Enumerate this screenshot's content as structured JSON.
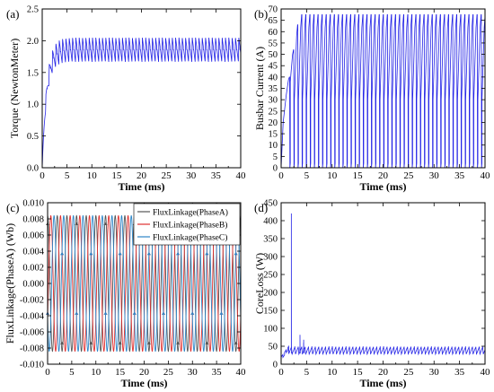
{
  "chart_data": [
    {
      "id": "a",
      "panel_label": "(a)",
      "type": "line",
      "xlabel": "Time (ms)",
      "ylabel": "Torque (NewtonMeter)",
      "xlim": [
        0,
        40
      ],
      "ylim": [
        0,
        2.5
      ],
      "xticks": [
        0,
        5,
        10,
        15,
        20,
        25,
        30,
        35,
        40
      ],
      "yticks": [
        0.0,
        0.5,
        1.0,
        1.5,
        2.0,
        2.5
      ],
      "ytick_decimals": 1,
      "series": [
        {
          "color": "#2424e6",
          "waveform": {
            "kind": "torque",
            "steady_max": 2.05,
            "steady_min": 1.6,
            "mean_trace": 1.86,
            "ripple_period_ms": 0.67,
            "rise_time_ms": 3.0
          }
        }
      ]
    },
    {
      "id": "b",
      "panel_label": "(b)",
      "type": "line",
      "xlabel": "Time (ms)",
      "ylabel": "Busbar Current (A)",
      "xlim": [
        0,
        40
      ],
      "ylim": [
        0,
        70
      ],
      "xticks": [
        0,
        5,
        10,
        15,
        20,
        25,
        30,
        35,
        40
      ],
      "yticks": [
        0,
        5,
        10,
        15,
        20,
        25,
        30,
        35,
        40,
        45,
        50,
        55,
        60,
        65,
        70
      ],
      "ytick_decimals": 0,
      "series": [
        {
          "color": "#2424e6",
          "waveform": {
            "kind": "busbar",
            "peak": 67.5,
            "trough": 0,
            "ramp_start": 30,
            "period_ms": 0.8,
            "startup_peaks": [
              40,
              52,
              63
            ]
          }
        }
      ]
    },
    {
      "id": "c",
      "panel_label": "(c)",
      "type": "line",
      "xlabel": "Time (ms)",
      "ylabel": "FluxLinkage(PhaseA) (Wb)",
      "xlim": [
        0,
        40
      ],
      "ylim": [
        -0.01,
        0.01
      ],
      "xticks": [
        0,
        5,
        10,
        15,
        20,
        25,
        30,
        35,
        40
      ],
      "yticks": [
        -0.01,
        -0.008,
        -0.006,
        -0.004,
        -0.002,
        0.0,
        0.002,
        0.004,
        0.006,
        0.008,
        0.01
      ],
      "ytick_decimals": 3,
      "legend": {
        "position": "top-right"
      },
      "series": [
        {
          "name": "FluxLinkage(PhaseA)",
          "color": "#555555",
          "waveform": {
            "kind": "sine",
            "amplitude": 0.0084,
            "period_ms": 2.0,
            "phase_deg": 90
          }
        },
        {
          "name": "FluxLinkage(PhaseB)",
          "color": "#e03030",
          "waveform": {
            "kind": "sine",
            "amplitude": 0.0084,
            "period_ms": 2.0,
            "phase_deg": -30
          }
        },
        {
          "name": "FluxLinkage(PhaseC)",
          "color": "#2d86c8",
          "waveform": {
            "kind": "sine",
            "amplitude": 0.0084,
            "period_ms": 2.0,
            "phase_deg": 210
          }
        }
      ]
    },
    {
      "id": "d",
      "panel_label": "(d)",
      "type": "line",
      "xlabel": "Time (ms)",
      "ylabel": "CoreLoss (W)",
      "xlim": [
        0,
        40
      ],
      "ylim": [
        0,
        450
      ],
      "xticks": [
        0,
        5,
        10,
        15,
        20,
        25,
        30,
        35,
        40
      ],
      "yticks": [
        0,
        50,
        100,
        150,
        200,
        250,
        300,
        350,
        400,
        450
      ],
      "ytick_decimals": 0,
      "series": [
        {
          "color": "#2424e6",
          "waveform": {
            "kind": "coreloss",
            "spike_time_ms": 2.0,
            "spike_value": 420,
            "second_spike_time_ms": 3.7,
            "second_spike_value": 82,
            "steady_max": 50,
            "steady_min": 28,
            "period_ms": 0.67
          }
        }
      ]
    }
  ]
}
